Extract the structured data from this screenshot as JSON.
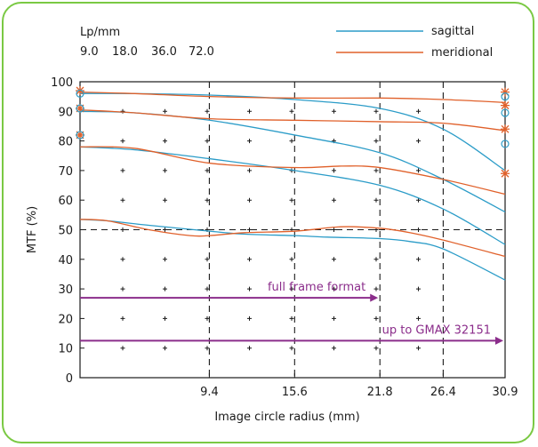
{
  "chart_data": {
    "type": "line",
    "xlabel": "Image circle radius (mm)",
    "ylabel": "MTF (%)",
    "xlim": [
      0,
      30.9
    ],
    "ylim": [
      0,
      100
    ],
    "x_ticks": [
      9.4,
      15.6,
      21.8,
      26.4,
      30.9
    ],
    "x_tick_labels": [
      "9.4",
      "15.6",
      "21.8",
      "26.4",
      "30.9"
    ],
    "y_ticks": [
      0,
      10,
      20,
      30,
      40,
      50,
      60,
      70,
      80,
      90,
      100
    ],
    "y_tick_labels": [
      "0",
      "10",
      "20",
      "30",
      "40",
      "50",
      "60",
      "70",
      "80",
      "90",
      "100"
    ],
    "grid": "dotted plus markers",
    "legend": {
      "position": "top-right",
      "entries": [
        {
          "name": "sagittal",
          "color": "#2b9cc8"
        },
        {
          "name": "meridional",
          "color": "#e0602a"
        }
      ]
    },
    "frequency_header": {
      "title": "Lp/mm",
      "values": [
        "9.0",
        "18.0",
        "36.0",
        "72.0"
      ]
    },
    "reference_lines": {
      "horizontal": [
        50
      ],
      "vertical": [
        9.4,
        15.6,
        21.8,
        26.4
      ]
    },
    "annotations": [
      {
        "text": "full frame format",
        "x_start": 0,
        "x_end": 21.8,
        "y": 27,
        "color": "#8b2d8b"
      },
      {
        "text": "up to GMAX 32151",
        "x_start": 0,
        "x_end": 30.9,
        "y": 12.5,
        "color": "#8b2d8b"
      }
    ],
    "series": [
      {
        "name": "sagittal",
        "frequency": "9.0",
        "color": "#2b9cc8",
        "x": [
          0,
          4,
          9.4,
          15.6,
          21.8,
          26.4,
          30.9
        ],
        "y": [
          96,
          96,
          95.5,
          94,
          91,
          84,
          70
        ]
      },
      {
        "name": "sagittal",
        "frequency": "18.0",
        "color": "#2b9cc8",
        "x": [
          0,
          4,
          9.4,
          15.6,
          21.8,
          26.4,
          30.9
        ],
        "y": [
          90,
          89.5,
          87,
          82,
          76,
          67,
          56
        ]
      },
      {
        "name": "sagittal",
        "frequency": "36.0",
        "color": "#2b9cc8",
        "x": [
          0,
          4,
          9.4,
          15.6,
          21.8,
          26.4,
          30.9
        ],
        "y": [
          78,
          77,
          74,
          70,
          65,
          57,
          45
        ]
      },
      {
        "name": "sagittal",
        "frequency": "72.0",
        "color": "#2b9cc8",
        "x": [
          0,
          2,
          5,
          9.4,
          12,
          15.6,
          18,
          21.8,
          24,
          26.4,
          30.9
        ],
        "y": [
          53.5,
          53,
          51.5,
          49.5,
          48.5,
          48,
          47.5,
          47,
          46,
          43.5,
          33
        ]
      },
      {
        "name": "meridional",
        "frequency": "9.0",
        "color": "#e0602a",
        "x": [
          0,
          4,
          9.4,
          15.6,
          21.8,
          26.4,
          30.9
        ],
        "y": [
          96.5,
          96,
          95,
          94.5,
          94.5,
          94,
          93
        ]
      },
      {
        "name": "meridional",
        "frequency": "18.0",
        "color": "#e0602a",
        "x": [
          0,
          4,
          9.4,
          15.6,
          21.8,
          26.4,
          30.9
        ],
        "y": [
          90.5,
          89.5,
          87.5,
          87,
          86.5,
          86,
          83.5
        ]
      },
      {
        "name": "meridional",
        "frequency": "36.0",
        "color": "#e0602a",
        "x": [
          0,
          4,
          9.4,
          15.6,
          19,
          21.8,
          26.4,
          30.9
        ],
        "y": [
          78,
          77.5,
          72.5,
          71,
          71.5,
          71,
          67,
          62
        ]
      },
      {
        "name": "meridional",
        "frequency": "72.0",
        "color": "#e0602a",
        "x": [
          0,
          2,
          5,
          8,
          9.4,
          12,
          15.6,
          19,
          21.8,
          24,
          26.4,
          30.9
        ],
        "y": [
          53.5,
          53,
          50,
          48,
          48,
          49,
          49.5,
          51,
          50.5,
          49,
          46.5,
          41
        ]
      }
    ],
    "edge_markers": {
      "left": [
        {
          "y": 97,
          "kind": "meridional"
        },
        {
          "y": 96,
          "kind": "sagittal"
        },
        {
          "y": 91,
          "kind": "meridional"
        },
        {
          "y": 91,
          "kind": "sagittal"
        },
        {
          "y": 82,
          "kind": "meridional"
        },
        {
          "y": 82,
          "kind": "sagittal"
        }
      ],
      "right": [
        {
          "y": 96.5,
          "kind": "meridional"
        },
        {
          "y": 95,
          "kind": "sagittal"
        },
        {
          "y": 92,
          "kind": "meridional"
        },
        {
          "y": 89.5,
          "kind": "sagittal"
        },
        {
          "y": 84,
          "kind": "meridional"
        },
        {
          "y": 79,
          "kind": "sagittal"
        },
        {
          "y": 69,
          "kind": "meridional"
        }
      ]
    }
  }
}
